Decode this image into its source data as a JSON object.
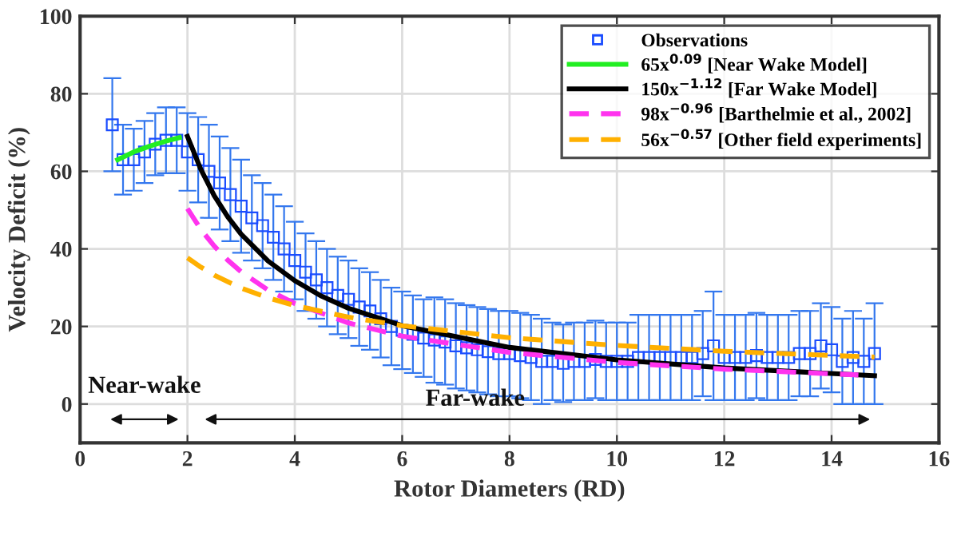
{
  "chart_data": {
    "type": "scatter",
    "xlabel": "Rotor Diameters (RD)",
    "ylabel": "Velocity Deficit (%)",
    "xlim": [
      0,
      16
    ],
    "ylim": [
      -10,
      100
    ],
    "xticks": [
      0,
      2,
      4,
      6,
      8,
      10,
      12,
      14,
      16
    ],
    "yticks": [
      0,
      20,
      40,
      60,
      80,
      100
    ],
    "grid": true,
    "legend": "top right",
    "series": [
      {
        "name": "Observations",
        "marker": "square",
        "color": "#1a4cff",
        "x": [
          0.6,
          0.8,
          1.0,
          1.2,
          1.4,
          1.6,
          1.8,
          2.0,
          2.2,
          2.4,
          2.6,
          2.8,
          3.0,
          3.2,
          3.4,
          3.6,
          3.8,
          4.0,
          4.2,
          4.4,
          4.6,
          4.8,
          5.0,
          5.2,
          5.4,
          5.6,
          5.8,
          6.0,
          6.2,
          6.4,
          6.6,
          6.8,
          7.0,
          7.2,
          7.4,
          7.6,
          7.8,
          8.0,
          8.2,
          8.4,
          8.6,
          8.8,
          9.0,
          9.2,
          9.4,
          9.6,
          9.8,
          10.0,
          10.2,
          10.4,
          10.6,
          10.8,
          11.0,
          11.2,
          11.4,
          11.6,
          11.8,
          12.0,
          12.2,
          12.4,
          12.6,
          12.8,
          13.0,
          13.2,
          13.4,
          13.6,
          13.8,
          14.0,
          14.2,
          14.4,
          14.6,
          14.8
        ],
        "values": [
          72,
          63,
          63,
          65,
          67,
          68,
          68,
          65,
          63,
          60,
          57,
          54,
          51,
          48,
          46,
          43,
          40,
          37,
          34,
          32,
          30,
          28,
          27,
          25,
          24,
          22,
          20,
          19,
          18,
          17,
          16.5,
          16,
          15,
          14.5,
          14,
          13.5,
          13,
          13,
          12.5,
          12,
          11,
          11,
          10.5,
          11,
          11,
          11.5,
          11,
          11,
          11,
          12,
          12,
          12,
          12,
          12,
          12,
          13,
          15,
          12,
          12,
          12,
          12.5,
          12,
          12,
          12,
          13,
          13,
          15,
          14,
          11,
          12,
          11,
          13
        ],
        "errors": [
          12,
          9,
          8,
          8,
          8,
          8.5,
          8.5,
          10,
          11,
          12,
          12,
          12,
          12,
          11,
          11,
          11,
          11,
          10,
          10,
          10,
          10,
          10,
          10,
          10,
          10,
          10,
          10,
          10,
          10,
          10,
          11,
          11,
          11,
          11,
          11,
          11,
          11,
          11,
          11,
          11,
          11,
          10,
          10,
          10,
          10,
          10,
          10,
          10,
          10,
          11,
          11,
          11,
          11,
          11,
          11,
          11,
          14,
          11,
          11,
          11,
          11,
          11,
          11,
          11,
          11,
          11,
          11,
          11,
          11,
          12,
          11,
          13
        ]
      },
      {
        "name": "65x$^{0.09}$ [Near Wake Model]",
        "type": "line",
        "line_style": "solid",
        "color": "#22ee22",
        "x": [
          0.7,
          1.0,
          1.3,
          1.6,
          1.85
        ],
        "values": [
          63,
          65,
          66.5,
          67.8,
          68.7
        ]
      },
      {
        "name": "150x$^{−1.12}$ [Far Wake Model]",
        "type": "line",
        "line_style": "solid",
        "color": "#000000",
        "x": [
          2,
          2.25,
          2.5,
          2.75,
          3,
          3.5,
          4,
          4.5,
          5,
          6,
          8,
          10,
          12,
          14.8
        ],
        "values": [
          69,
          60.5,
          53.7,
          48.3,
          43.8,
          36.9,
          31.8,
          27.8,
          24.7,
          20.2,
          14.6,
          11.4,
          9.3,
          7.3
        ]
      },
      {
        "name": "98x$^{−0.96}$ [Barthelmie et al., 2002]",
        "type": "line",
        "line_style": "dashed",
        "color": "#ff33ee",
        "x": [
          2,
          2.25,
          2.5,
          2.75,
          3,
          3.5,
          4,
          5,
          6,
          8,
          10,
          12,
          14.5
        ],
        "values": [
          50.4,
          45.0,
          40.7,
          37.1,
          34.1,
          29.4,
          25.9,
          20.9,
          17.5,
          13.3,
          10.7,
          9.0,
          7.5
        ]
      },
      {
        "name": "56x$^{−0.57}$ [Other field experiments]",
        "type": "line",
        "line_style": "dashed",
        "color": "#ffb000",
        "x": [
          2,
          2.25,
          2.5,
          3,
          3.5,
          4,
          5,
          6,
          8,
          10,
          12,
          14.8
        ],
        "values": [
          37.7,
          35.3,
          33.2,
          29.9,
          27.4,
          25.4,
          22.4,
          20.2,
          17.1,
          15.1,
          13.6,
          12.1
        ]
      }
    ],
    "annotations": [
      "Near-wake",
      "Far-wake"
    ]
  }
}
